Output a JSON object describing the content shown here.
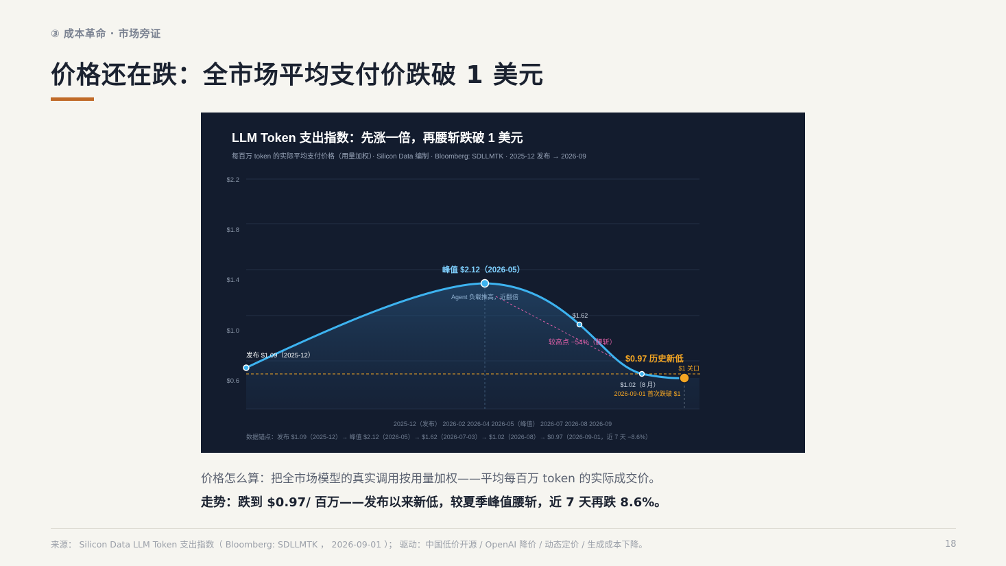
{
  "header": {
    "kicker": "③ 成本革命 · 市场旁证",
    "title": "价格还在跌：全市场平均支付价跌破 1 美元"
  },
  "body": {
    "line1": "价格怎么算：把全市场模型的真实调用按用量加权——平均每百万 token 的实际成交价。",
    "line2": "走势：跌到 $0.97/ 百万——发布以来新低，较夏季峰值腰斩，近 7 天再跌 8.6%。"
  },
  "footer": {
    "source": "来源： Silicon Data LLM Token 支出指数（ Bloomberg: SDLLMTK ， 2026-09-01 ）； 驱动：中国低价开源 / OpenAI 降价 / 动态定价 / 生成成本下降。",
    "page": "18"
  },
  "colors": {
    "line": "#3db3f0",
    "accent_orange": "#f5a623",
    "pink": "#e060a8",
    "card_bg": "#131c2e",
    "title_rule": "#c06a28"
  },
  "chart_data": {
    "type": "line",
    "title": "LLM Token 支出指数：先涨一倍，再腰斩跌破 1 美元",
    "subtitle": "每百万 token 的实际平均支付价格（用量加权）· Silicon Data 编制 · Bloomberg: SDLLMTK · 2025-12 发布 → 2026-09",
    "y_tick_labels": [
      "$0.6",
      "$1.0",
      "$1.4",
      "$1.8",
      "$2.2"
    ],
    "x_tick_labels": "2025-12（发布） 2026-02 2026-04 2026-05（峰值） 2026-07 2026-08 2026-09",
    "anchor_points": [
      {
        "date": "2025-12",
        "value": 1.09
      },
      {
        "date": "2026-05",
        "value": 2.12
      },
      {
        "date": "2026-07-03",
        "value": 1.62
      },
      {
        "date": "2026-08",
        "value": 1.02
      },
      {
        "date": "2026-09-01",
        "value": 0.97
      }
    ],
    "reference_line": {
      "value": 1.0,
      "label": "$1 关口"
    },
    "annotations": {
      "launch": "发布 $1.09（2025-12）",
      "peak": "峰值 $2.12（2026-05）",
      "peak_note": "Agent 负载推高，近翻倍",
      "mid": "$1.62",
      "drop": "较高点 −54%（腰斩）",
      "low": "$0.97 历史新低",
      "aug": "$1.02（8 月）",
      "first_break": "2026-09-01 首次跌破 $1"
    },
    "anchors_note": "数据锚点：发布 $1.09（2025-12）→ 峰值 $2.12（2026-05）→ $1.62（2026-07-03）→ $1.02（2026-08）→ $0.97（2026-09-01，近 7 天 −8.6%）"
  }
}
